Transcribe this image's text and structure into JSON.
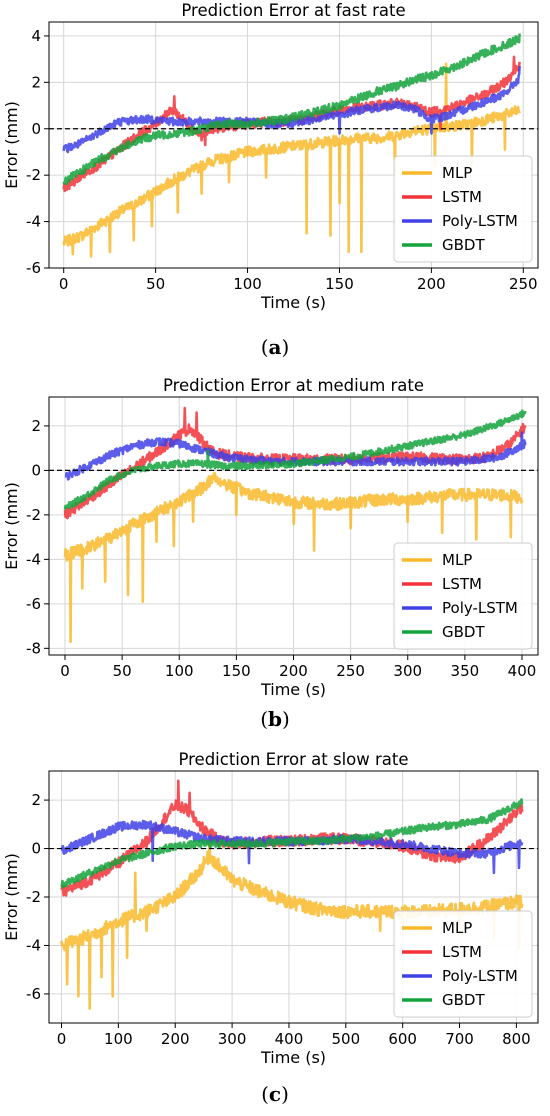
{
  "panels": [
    {
      "caption": {
        "open": "(",
        "letter": "a",
        "close": ")"
      },
      "chart_data": {
        "type": "line",
        "title": "Prediction Error at fast rate",
        "xlabel": "Time (s)",
        "ylabel": "Error (mm)",
        "xlim": [
          -8,
          258
        ],
        "ylim": [
          -6.0,
          4.6
        ],
        "xticks": [
          0,
          50,
          100,
          150,
          200,
          250
        ],
        "yticks": [
          -6,
          -4,
          -2,
          0,
          2,
          4
        ],
        "grid": true,
        "reference_line_y": 0,
        "legend_position": "lower-right",
        "series": [
          {
            "name": "MLP",
            "color": "#f9b829",
            "x": [
              0,
              10,
              20,
              30,
              40,
              50,
              60,
              70,
              80,
              90,
              100,
              110,
              120,
              130,
              140,
              150,
              160,
              170,
              180,
              190,
              200,
              210,
              220,
              230,
              240,
              248
            ],
            "values": [
              -4.9,
              -4.6,
              -4.1,
              -3.6,
              -3.2,
              -2.7,
              -2.2,
              -1.8,
              -1.4,
              -1.2,
              -1.0,
              -0.9,
              -0.8,
              -0.7,
              -0.6,
              -0.5,
              -0.4,
              -0.4,
              -0.3,
              -0.1,
              0.0,
              0.1,
              0.2,
              0.4,
              0.6,
              0.8
            ],
            "spikes": [
              [
                5,
                -5.4
              ],
              [
                15,
                -5.5
              ],
              [
                25,
                -5.3
              ],
              [
                38,
                -4.8
              ],
              [
                48,
                -4.2
              ],
              [
                62,
                -3.6
              ],
              [
                75,
                -2.8
              ],
              [
                90,
                -2.3
              ],
              [
                110,
                -2.1
              ],
              [
                132,
                -4.5
              ],
              [
                145,
                -4.6
              ],
              [
                150,
                -3.2
              ],
              [
                155,
                -5.3
              ],
              [
                162,
                -5.3
              ],
              [
                180,
                -2.0
              ],
              [
                202,
                -1.6
              ],
              [
                208,
                2.8
              ],
              [
                222,
                -1.5
              ],
              [
                240,
                -0.9
              ]
            ],
            "noise": 0.45
          },
          {
            "name": "LSTM",
            "color": "#f2333a",
            "x": [
              0,
              10,
              20,
              30,
              40,
              50,
              55,
              60,
              65,
              70,
              75,
              80,
              90,
              100,
              110,
              120,
              130,
              140,
              150,
              160,
              170,
              180,
              190,
              200,
              210,
              220,
              230,
              240,
              248
            ],
            "values": [
              -2.6,
              -2.0,
              -1.5,
              -0.9,
              -0.3,
              0.2,
              0.6,
              0.8,
              0.4,
              0.0,
              -0.3,
              0.0,
              0.1,
              0.2,
              0.3,
              0.3,
              0.4,
              0.6,
              0.8,
              0.9,
              1.0,
              1.1,
              1.0,
              0.7,
              0.9,
              1.2,
              1.5,
              2.0,
              2.8
            ],
            "spikes": [
              [
                60,
                1.4
              ],
              [
                77,
                -0.7
              ],
              [
                205,
                0.0
              ],
              [
                245,
                3.1
              ]
            ],
            "noise": 0.4
          },
          {
            "name": "Poly-LSTM",
            "color": "#4041e6",
            "x": [
              0,
              10,
              20,
              30,
              40,
              50,
              60,
              70,
              80,
              90,
              100,
              110,
              120,
              130,
              140,
              150,
              160,
              170,
              180,
              190,
              200,
              210,
              220,
              230,
              240,
              248
            ],
            "values": [
              -0.9,
              -0.6,
              -0.1,
              0.3,
              0.4,
              0.4,
              0.3,
              0.3,
              0.3,
              0.3,
              0.3,
              0.2,
              0.2,
              0.3,
              0.5,
              0.6,
              0.8,
              0.9,
              1.0,
              0.9,
              0.4,
              0.6,
              0.9,
              1.2,
              1.5,
              2.2
            ],
            "spikes": [
              [
                150,
                -0.2
              ],
              [
                200,
                -0.2
              ],
              [
                248,
                2.7
              ]
            ],
            "noise": 0.35
          },
          {
            "name": "GBDT",
            "color": "#14a33c",
            "x": [
              0,
              10,
              20,
              30,
              40,
              50,
              60,
              70,
              80,
              90,
              100,
              110,
              120,
              130,
              140,
              150,
              160,
              170,
              180,
              190,
              200,
              210,
              220,
              230,
              240,
              248
            ],
            "values": [
              -2.3,
              -1.8,
              -1.3,
              -0.9,
              -0.5,
              -0.3,
              -0.2,
              -0.1,
              0.1,
              0.2,
              0.2,
              0.3,
              0.4,
              0.6,
              0.8,
              1.0,
              1.3,
              1.6,
              1.8,
              2.1,
              2.3,
              2.6,
              2.9,
              3.3,
              3.6,
              3.9
            ],
            "spikes": [
              [
                248,
                4.1
              ]
            ],
            "noise": 0.35
          }
        ]
      }
    },
    {
      "caption": {
        "open": "(",
        "letter": "b",
        "close": ")"
      },
      "chart_data": {
        "type": "line",
        "title": "Prediction Error at medium rate",
        "xlabel": "Time (s)",
        "ylabel": "Error (mm)",
        "xlim": [
          -14,
          414
        ],
        "ylim": [
          -8.3,
          3.3
        ],
        "xticks": [
          0,
          50,
          100,
          150,
          200,
          250,
          300,
          350,
          400
        ],
        "yticks": [
          -8,
          -6,
          -4,
          -2,
          0,
          2
        ],
        "grid": true,
        "reference_line_y": 0,
        "legend_position": "lower-right",
        "series": [
          {
            "name": "MLP",
            "color": "#f9b829",
            "x": [
              0,
              20,
              40,
              60,
              80,
              100,
              120,
              130,
              140,
              160,
              180,
              200,
              220,
              240,
              260,
              280,
              300,
              320,
              340,
              360,
              380,
              400
            ],
            "values": [
              -3.8,
              -3.5,
              -3.0,
              -2.4,
              -1.9,
              -1.4,
              -0.8,
              -0.3,
              -0.6,
              -1.0,
              -1.2,
              -1.4,
              -1.5,
              -1.5,
              -1.4,
              -1.3,
              -1.3,
              -1.2,
              -1.1,
              -1.1,
              -1.1,
              -1.2
            ],
            "spikes": [
              [
                5,
                -7.7
              ],
              [
                15,
                -5.3
              ],
              [
                35,
                -5.0
              ],
              [
                55,
                -5.6
              ],
              [
                68,
                -5.9
              ],
              [
                80,
                -3.2
              ],
              [
                95,
                -3.4
              ],
              [
                112,
                -2.3
              ],
              [
                150,
                -2.0
              ],
              [
                200,
                -2.4
              ],
              [
                218,
                -3.6
              ],
              [
                250,
                -2.6
              ],
              [
                300,
                -2.3
              ],
              [
                330,
                -2.8
              ],
              [
                360,
                -3.1
              ],
              [
                390,
                -3.0
              ],
              [
                402,
                -3.1
              ]
            ],
            "noise": 0.55
          },
          {
            "name": "LSTM",
            "color": "#f2333a",
            "x": [
              0,
              20,
              40,
              60,
              80,
              100,
              110,
              120,
              130,
              150,
              180,
              200,
              250,
              300,
              350,
              370,
              390,
              403
            ],
            "values": [
              -2.0,
              -1.3,
              -0.6,
              0.1,
              0.8,
              1.6,
              1.9,
              1.3,
              0.8,
              0.6,
              0.5,
              0.5,
              0.5,
              0.6,
              0.5,
              0.6,
              1.2,
              2.0
            ],
            "spikes": [
              [
                105,
                2.8
              ],
              [
                115,
                2.6
              ]
            ],
            "noise": 0.45
          },
          {
            "name": "Poly-LSTM",
            "color": "#4041e6",
            "x": [
              0,
              20,
              40,
              60,
              80,
              100,
              120,
              140,
              160,
              180,
              200,
              250,
              300,
              350,
              380,
              403
            ],
            "values": [
              -0.3,
              0.2,
              0.7,
              1.1,
              1.3,
              1.2,
              0.9,
              0.6,
              0.5,
              0.4,
              0.4,
              0.4,
              0.4,
              0.4,
              0.6,
              1.2
            ],
            "spikes": [
              [
                400,
                1.7
              ]
            ],
            "noise": 0.35
          },
          {
            "name": "GBDT",
            "color": "#14a33c",
            "x": [
              0,
              20,
              40,
              60,
              80,
              100,
              120,
              140,
              160,
              200,
              250,
              300,
              350,
              380,
              403
            ],
            "values": [
              -1.7,
              -1.1,
              -0.4,
              0.0,
              0.2,
              0.3,
              0.3,
              0.2,
              0.2,
              0.3,
              0.6,
              1.1,
              1.6,
              2.1,
              2.6
            ],
            "spikes": [
              [
                125,
                0.9
              ]
            ],
            "noise": 0.3
          }
        ]
      }
    },
    {
      "caption": {
        "open": "(",
        "letter": "c",
        "close": ")"
      },
      "chart_data": {
        "type": "line",
        "title": "Prediction Error at slow rate",
        "xlabel": "Time (s)",
        "ylabel": "Error (mm)",
        "xlim": [
          -22,
          838
        ],
        "ylim": [
          -7.2,
          3.2
        ],
        "xticks": [
          0,
          100,
          200,
          300,
          400,
          500,
          600,
          700,
          800
        ],
        "yticks": [
          -6,
          -4,
          -2,
          0,
          2
        ],
        "grid": true,
        "reference_line_y": 0,
        "legend_position": "lower-right",
        "series": [
          {
            "name": "MLP",
            "color": "#f9b829",
            "x": [
              0,
              50,
              100,
              150,
              200,
              240,
              260,
              280,
              300,
              350,
              400,
              450,
              500,
              550,
              600,
              650,
              700,
              750,
              800,
              810
            ],
            "values": [
              -4.0,
              -3.6,
              -3.0,
              -2.6,
              -2.0,
              -1.0,
              -0.3,
              -0.8,
              -1.3,
              -1.8,
              -2.2,
              -2.5,
              -2.6,
              -2.6,
              -2.6,
              -2.6,
              -2.5,
              -2.4,
              -2.2,
              -2.2
            ],
            "spikes": [
              [
                10,
                -5.6
              ],
              [
                30,
                -6.1
              ],
              [
                50,
                -6.6
              ],
              [
                70,
                -5.3
              ],
              [
                90,
                -6.1
              ],
              [
                115,
                -4.5
              ],
              [
                130,
                -1.0
              ],
              [
                150,
                -3.4
              ],
              [
                260,
                0.4
              ],
              [
                560,
                -3.4
              ],
              [
                600,
                -3.2
              ],
              [
                700,
                -3.5
              ],
              [
                760,
                -3.7
              ],
              [
                805,
                -4.1
              ]
            ],
            "noise": 0.55
          },
          {
            "name": "LSTM",
            "color": "#f2333a",
            "x": [
              0,
              50,
              100,
              150,
              180,
              200,
              220,
              250,
              280,
              300,
              350,
              400,
              450,
              500,
              550,
              600,
              650,
              700,
              750,
              810
            ],
            "values": [
              -1.8,
              -1.3,
              -0.6,
              0.3,
              1.2,
              1.8,
              1.6,
              0.8,
              0.3,
              0.2,
              0.3,
              0.3,
              0.4,
              0.4,
              0.3,
              0.1,
              -0.3,
              -0.4,
              0.4,
              1.7
            ],
            "spikes": [
              [
                205,
                2.8
              ],
              [
                225,
                2.3
              ]
            ],
            "noise": 0.45
          },
          {
            "name": "Poly-LSTM",
            "color": "#4041e6",
            "x": [
              0,
              50,
              100,
              150,
              200,
              250,
              300,
              350,
              400,
              450,
              500,
              550,
              600,
              650,
              700,
              750,
              800,
              810
            ],
            "values": [
              -0.1,
              0.4,
              0.9,
              1.0,
              0.7,
              0.4,
              0.3,
              0.3,
              0.3,
              0.3,
              0.4,
              0.3,
              0.2,
              0.0,
              -0.2,
              -0.2,
              0.2,
              0.3
            ],
            "spikes": [
              [
                160,
                -0.5
              ],
              [
                330,
                -0.6
              ],
              [
                760,
                -1.0
              ],
              [
                805,
                -0.8
              ]
            ],
            "noise": 0.35
          },
          {
            "name": "GBDT",
            "color": "#14a33c",
            "x": [
              0,
              50,
              100,
              150,
              200,
              250,
              300,
              350,
              400,
              450,
              500,
              550,
              600,
              650,
              700,
              750,
              800,
              810
            ],
            "values": [
              -1.5,
              -1.0,
              -0.5,
              -0.2,
              0.1,
              0.2,
              0.2,
              0.2,
              0.3,
              0.3,
              0.4,
              0.5,
              0.7,
              0.9,
              1.0,
              1.2,
              1.8,
              1.9
            ],
            "spikes": [],
            "noise": 0.3
          }
        ]
      }
    }
  ]
}
